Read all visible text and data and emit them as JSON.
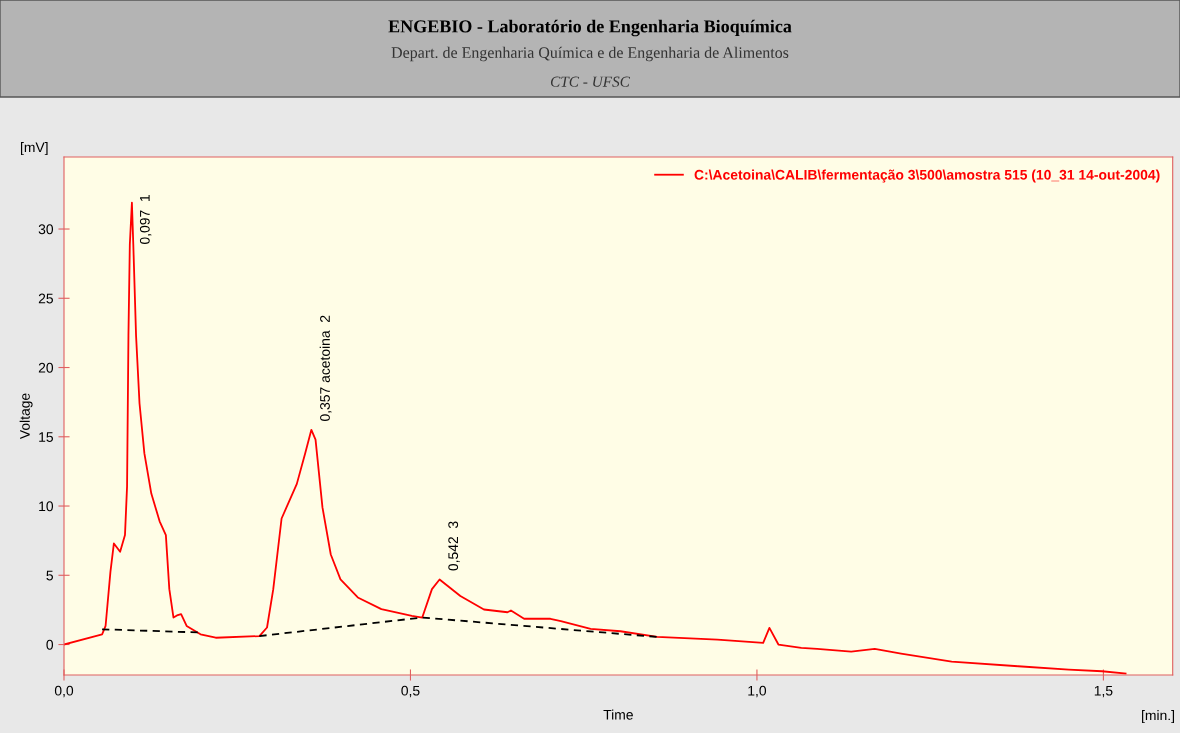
{
  "chart_data": {
    "type": "line",
    "title": "ENGEBIO - Laboratório de Engenharia Bioquímica",
    "subtitle": "Depart. de Engenharia Química e de Engenharia de Alimentos",
    "xlabel": "Time",
    "ylabel": "Voltage",
    "annotations": [
      "CTC - UFSC",
      "[mV]",
      "[min.]",
      {
        "text": "0,097  1",
        "x": 0.097,
        "y": 31.9
      },
      {
        "text": "0,357 acetoina  2",
        "x": 0.357,
        "y": 15.5
      },
      {
        "text": "0,542  3",
        "x": 0.542,
        "y": 4.7
      }
    ],
    "series": [
      {
        "name": "C:\\Acetoina\\CALIB\\fermentação 3\\500\\amostra 515 (10_31 14-out-2004)",
        "color": "#ff0000",
        "line_style": "solid",
        "x": [
          0,
          0.055,
          0.06,
          0.067,
          0.072,
          0.081,
          0.088,
          0.091,
          0.093,
          0.095,
          0.098,
          0.1,
          0.104,
          0.109,
          0.116,
          0.126,
          0.138,
          0.147,
          0.152,
          0.158,
          0.163,
          0.169,
          0.177,
          0.197,
          0.219,
          0.282,
          0.293,
          0.302,
          0.314,
          0.336,
          0.348,
          0.357,
          0.363,
          0.373,
          0.385,
          0.399,
          0.424,
          0.458,
          0.502,
          0.517,
          0.531,
          0.542,
          0.572,
          0.606,
          0.64,
          0.645,
          0.664,
          0.702,
          0.717,
          0.76,
          0.803,
          0.856,
          0.943,
          1.009,
          1.018,
          1.031,
          1.064,
          1.087,
          1.136,
          1.17,
          1.208,
          1.281,
          1.377,
          1.45,
          1.498,
          1.532
        ],
        "values": [
          0,
          0.74,
          1.34,
          5.25,
          7.3,
          6.7,
          7.9,
          11.4,
          22.3,
          28.9,
          31.9,
          28.9,
          22.3,
          17.4,
          13.8,
          10.9,
          8.9,
          7.9,
          4.0,
          1.95,
          2.1,
          2.2,
          1.34,
          0.74,
          0.49,
          0.61,
          1.23,
          4.0,
          9.1,
          11.6,
          13.8,
          15.5,
          14.8,
          9.9,
          6.5,
          4.7,
          3.4,
          2.56,
          2.07,
          1.95,
          4.0,
          4.7,
          3.5,
          2.53,
          2.33,
          2.46,
          1.86,
          1.86,
          1.69,
          1.13,
          0.96,
          0.55,
          0.36,
          0.12,
          1.2,
          0,
          -0.24,
          -0.31,
          -0.51,
          -0.31,
          -0.65,
          -1.23,
          -1.57,
          -1.81,
          -1.93,
          -2.09
        ]
      },
      {
        "color": "#000000",
        "line_style": "dashed",
        "x": [
          0.055,
          0.195,
          0.238,
          0.282,
          0.517,
          0.856
        ],
        "values": [
          1.1,
          0.87,
          null,
          0.61,
          1.95,
          0.55
        ]
      }
    ],
    "xlim": [
      0,
      1.6
    ],
    "ylim": [
      -2.2,
      35.2
    ],
    "xticks": [
      {
        "value": 0,
        "label": "0,0"
      },
      {
        "value": 0.5,
        "label": "0,5"
      },
      {
        "value": 1.0,
        "label": "1,0"
      },
      {
        "value": 1.5,
        "label": "1,5"
      }
    ],
    "yticks": [
      0,
      5,
      10,
      15,
      20,
      25,
      30
    ],
    "grid": false,
    "legend": "top right",
    "marker": "none"
  }
}
